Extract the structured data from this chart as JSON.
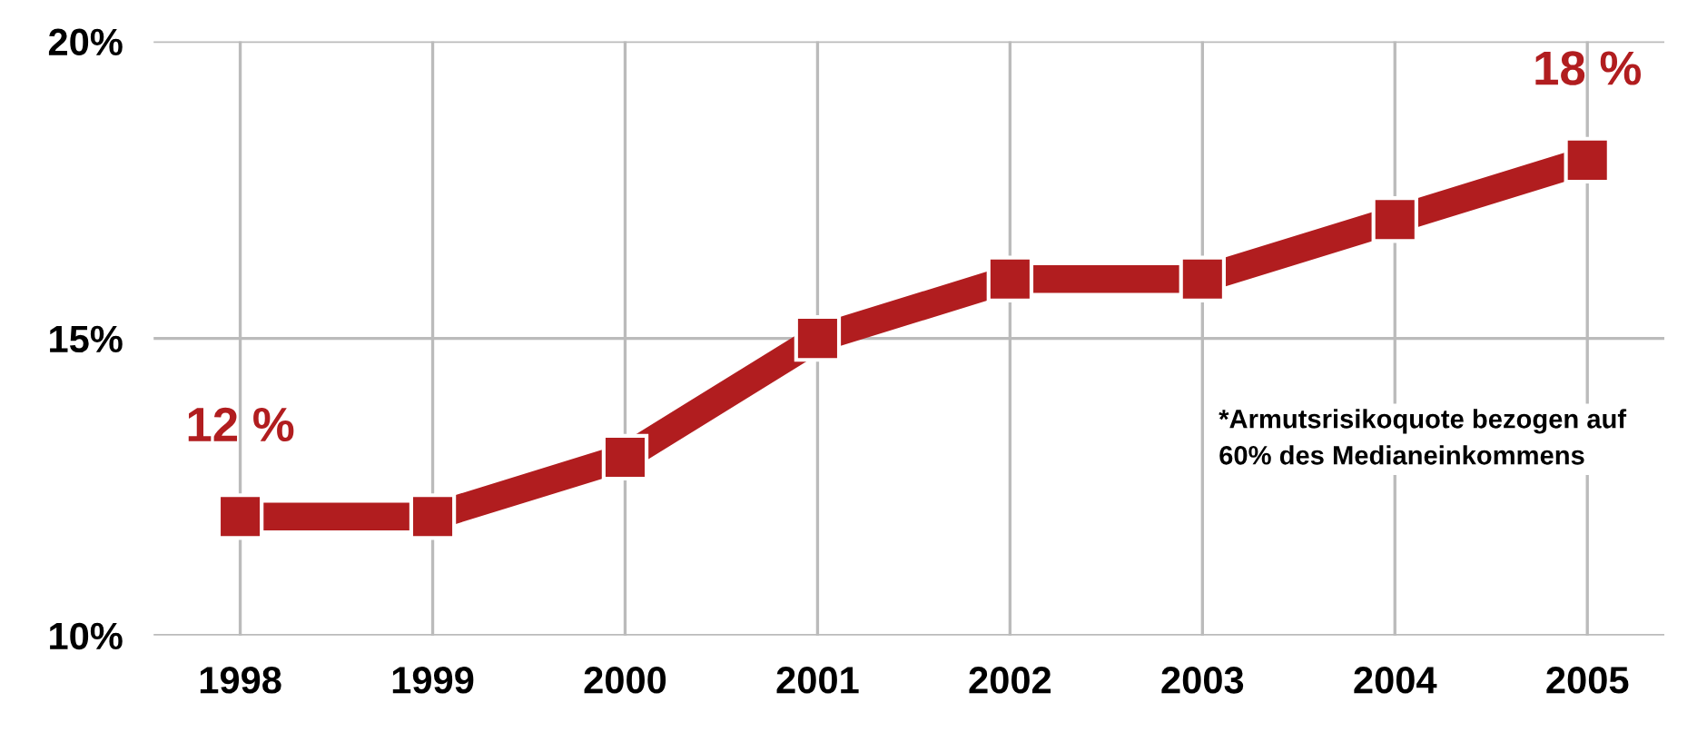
{
  "chart_data": {
    "type": "line",
    "categories": [
      "1998",
      "1999",
      "2000",
      "2001",
      "2002",
      "2003",
      "2004",
      "2005"
    ],
    "series": [
      {
        "color": "#b11d1f",
        "values": [
          12,
          12,
          13,
          15,
          16,
          16,
          17,
          18
        ]
      }
    ],
    "ylim": [
      10,
      20
    ],
    "yticks": [
      {
        "value": 10,
        "label": "10%"
      },
      {
        "value": 15,
        "label": "15%"
      },
      {
        "value": 20,
        "label": "20%"
      }
    ],
    "grid": true,
    "marker": "square",
    "line_style": "solid",
    "annotations": [
      {
        "text": "12 %",
        "x": "1998",
        "y": 12
      },
      {
        "text": "18 %",
        "x": "2005",
        "y": 18
      },
      "*Armutsrisikoquote bezogen auf\n60% des Medianeinkommens"
    ]
  }
}
